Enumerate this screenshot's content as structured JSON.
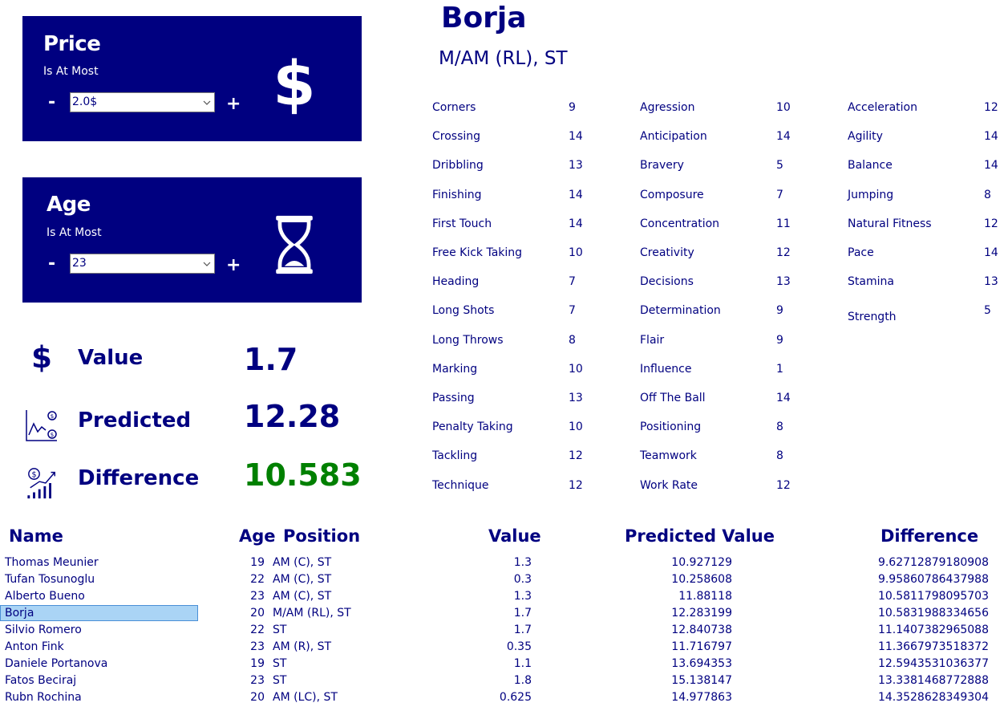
{
  "filters": {
    "price": {
      "title": "Price",
      "subtitle": "Is At Most",
      "minus": "-",
      "plus": "+",
      "value": "2.0$",
      "icon": "dollar-icon"
    },
    "age": {
      "title": "Age",
      "subtitle": "Is At Most",
      "minus": "-",
      "plus": "+",
      "value": "23",
      "icon": "hourglass-icon"
    }
  },
  "kpis": {
    "value": {
      "label": "Value",
      "number": "1.7",
      "icon": "dollar-icon"
    },
    "predicted": {
      "label": "Predicted",
      "number": "12.28",
      "icon": "chart-coins-icon"
    },
    "difference": {
      "label": "Difference",
      "number": "10.583",
      "icon": "growth-chart-icon",
      "color": "#008000"
    }
  },
  "player": {
    "name": "Borja",
    "position": "M/AM (RL), ST",
    "technical": [
      {
        "name": "Corners",
        "value": "9"
      },
      {
        "name": "Crossing",
        "value": "14"
      },
      {
        "name": "Dribbling",
        "value": "13"
      },
      {
        "name": "Finishing",
        "value": "14"
      },
      {
        "name": "First Touch",
        "value": "14"
      },
      {
        "name": "Free Kick Taking",
        "value": "10"
      },
      {
        "name": "Heading",
        "value": "7"
      },
      {
        "name": "Long Shots",
        "value": "7"
      },
      {
        "name": "Long Throws",
        "value": "8"
      },
      {
        "name": "Marking",
        "value": "10"
      },
      {
        "name": "Passing",
        "value": "13"
      },
      {
        "name": "Penalty Taking",
        "value": "10"
      },
      {
        "name": "Tackling",
        "value": "12"
      },
      {
        "name": "Technique",
        "value": "12"
      }
    ],
    "mental": [
      {
        "name": "Agression",
        "value": "10"
      },
      {
        "name": "Anticipation",
        "value": "14"
      },
      {
        "name": "Bravery",
        "value": "5"
      },
      {
        "name": "Composure",
        "value": "7"
      },
      {
        "name": "Concentration",
        "value": "11"
      },
      {
        "name": "Creativity",
        "value": "12"
      },
      {
        "name": "Decisions",
        "value": "13"
      },
      {
        "name": "Determination",
        "value": "9"
      },
      {
        "name": "Flair",
        "value": "9"
      },
      {
        "name": "Influence",
        "value": "1"
      },
      {
        "name": "Off The Ball",
        "value": "14"
      },
      {
        "name": "Positioning",
        "value": "8"
      },
      {
        "name": "Teamwork",
        "value": "8"
      },
      {
        "name": "Work Rate",
        "value": "12"
      }
    ],
    "physical": [
      {
        "name": "Acceleration",
        "value": "12"
      },
      {
        "name": "Agility",
        "value": "14"
      },
      {
        "name": "Balance",
        "value": "14"
      },
      {
        "name": "Jumping",
        "value": "8"
      },
      {
        "name": "Natural Fitness",
        "value": "12"
      },
      {
        "name": "Pace",
        "value": "14"
      },
      {
        "name": "Stamina",
        "value": "13"
      },
      {
        "name": "Strength",
        "value": "5"
      }
    ]
  },
  "table": {
    "headers": {
      "name": "Name",
      "age": "Age",
      "position": "Position",
      "value": "Value",
      "predicted": "Predicted Value",
      "difference": "Difference"
    },
    "rows": [
      {
        "name": "Thomas Meunier",
        "age": "19",
        "position": "AM (C), ST",
        "value": "1.3",
        "predicted": "10.927129",
        "difference": "9.62712879180908"
      },
      {
        "name": "Tufan Tosunoglu",
        "age": "22",
        "position": "AM (C), ST",
        "value": "0.3",
        "predicted": "10.258608",
        "difference": "9.95860786437988"
      },
      {
        "name": "Alberto Bueno",
        "age": "23",
        "position": "AM (C), ST",
        "value": "1.3",
        "predicted": "11.88118",
        "difference": "10.5811798095703"
      },
      {
        "name": "Borja",
        "age": "20",
        "position": "M/AM (RL), ST",
        "value": "1.7",
        "predicted": "12.283199",
        "difference": "10.5831988334656",
        "selected": true
      },
      {
        "name": "Silvio Romero",
        "age": "22",
        "position": "ST",
        "value": "1.7",
        "predicted": "12.840738",
        "difference": "11.1407382965088"
      },
      {
        "name": "Anton Fink",
        "age": "23",
        "position": "AM (R), ST",
        "value": "0.35",
        "predicted": "11.716797",
        "difference": "11.3667973518372"
      },
      {
        "name": "Daniele Portanova",
        "age": "19",
        "position": "ST",
        "value": "1.1",
        "predicted": "13.694353",
        "difference": "12.5943531036377"
      },
      {
        "name": "Fatos Beciraj",
        "age": "23",
        "position": "ST",
        "value": "1.8",
        "predicted": "15.138147",
        "difference": "13.3381468772888"
      },
      {
        "name": "Rubn Rochina",
        "age": "20",
        "position": "AM (LC), ST",
        "value": "0.625",
        "predicted": "14.977863",
        "difference": "14.3528628349304"
      }
    ]
  }
}
